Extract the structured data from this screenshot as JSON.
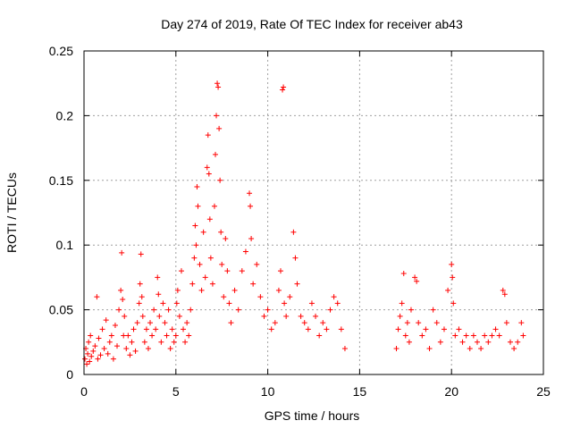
{
  "chart_data": {
    "type": "scatter",
    "title": "Day 274 of 2019, Rate Of TEC Index for receiver ab43",
    "xlabel": "GPS time / hours",
    "ylabel": "ROTI / TECUs",
    "xlim": [
      0,
      25
    ],
    "ylim": [
      0,
      0.25
    ],
    "x_ticks": [
      0,
      5,
      10,
      15,
      20,
      25
    ],
    "x_tick_labels": [
      "0",
      "5",
      "10",
      "15",
      "20",
      "25"
    ],
    "y_ticks": [
      0,
      0.05,
      0.1,
      0.15,
      0.2,
      0.25
    ],
    "y_tick_labels": [
      "0",
      "0.05",
      "0.1",
      "0.15",
      "0.2",
      "0.25"
    ],
    "grid": true,
    "marker": "+",
    "color": "#ff0000",
    "series": [
      {
        "name": "ROTI",
        "points": [
          [
            0.05,
            0.012
          ],
          [
            0.1,
            0.02
          ],
          [
            0.15,
            0.008
          ],
          [
            0.2,
            0.016
          ],
          [
            0.25,
            0.025
          ],
          [
            0.3,
            0.01
          ],
          [
            0.35,
            0.03
          ],
          [
            0.4,
            0.014
          ],
          [
            0.5,
            0.018
          ],
          [
            0.6,
            0.022
          ],
          [
            0.7,
            0.06
          ],
          [
            0.75,
            0.012
          ],
          [
            0.8,
            0.028
          ],
          [
            0.9,
            0.015
          ],
          [
            1.0,
            0.035
          ],
          [
            1.1,
            0.02
          ],
          [
            1.2,
            0.042
          ],
          [
            1.3,
            0.016
          ],
          [
            1.4,
            0.025
          ],
          [
            1.5,
            0.03
          ],
          [
            1.6,
            0.012
          ],
          [
            1.7,
            0.038
          ],
          [
            1.8,
            0.022
          ],
          [
            1.9,
            0.05
          ],
          [
            2.0,
            0.065
          ],
          [
            2.05,
            0.094
          ],
          [
            2.1,
            0.058
          ],
          [
            2.15,
            0.03
          ],
          [
            2.2,
            0.045
          ],
          [
            2.3,
            0.02
          ],
          [
            2.4,
            0.03
          ],
          [
            2.5,
            0.015
          ],
          [
            2.6,
            0.025
          ],
          [
            2.7,
            0.035
          ],
          [
            2.8,
            0.018
          ],
          [
            2.9,
            0.04
          ],
          [
            3.0,
            0.055
          ],
          [
            3.05,
            0.07
          ],
          [
            3.1,
            0.093
          ],
          [
            3.15,
            0.06
          ],
          [
            3.2,
            0.045
          ],
          [
            3.3,
            0.025
          ],
          [
            3.4,
            0.035
          ],
          [
            3.5,
            0.02
          ],
          [
            3.6,
            0.04
          ],
          [
            3.7,
            0.03
          ],
          [
            3.8,
            0.05
          ],
          [
            3.9,
            0.035
          ],
          [
            4.0,
            0.075
          ],
          [
            4.05,
            0.062
          ],
          [
            4.1,
            0.045
          ],
          [
            4.2,
            0.025
          ],
          [
            4.3,
            0.055
          ],
          [
            4.4,
            0.04
          ],
          [
            4.5,
            0.03
          ],
          [
            4.6,
            0.05
          ],
          [
            4.7,
            0.02
          ],
          [
            4.8,
            0.035
          ],
          [
            4.9,
            0.025
          ],
          [
            5.0,
            0.03
          ],
          [
            5.05,
            0.055
          ],
          [
            5.1,
            0.065
          ],
          [
            5.2,
            0.045
          ],
          [
            5.3,
            0.08
          ],
          [
            5.4,
            0.035
          ],
          [
            5.5,
            0.025
          ],
          [
            5.6,
            0.04
          ],
          [
            5.7,
            0.03
          ],
          [
            5.8,
            0.05
          ],
          [
            5.9,
            0.07
          ],
          [
            6.0,
            0.09
          ],
          [
            6.05,
            0.115
          ],
          [
            6.1,
            0.1
          ],
          [
            6.15,
            0.145
          ],
          [
            6.2,
            0.13
          ],
          [
            6.3,
            0.085
          ],
          [
            6.4,
            0.065
          ],
          [
            6.5,
            0.11
          ],
          [
            6.6,
            0.075
          ],
          [
            6.7,
            0.16
          ],
          [
            6.75,
            0.185
          ],
          [
            6.8,
            0.155
          ],
          [
            6.85,
            0.12
          ],
          [
            6.9,
            0.09
          ],
          [
            7.0,
            0.07
          ],
          [
            7.1,
            0.13
          ],
          [
            7.15,
            0.17
          ],
          [
            7.2,
            0.2
          ],
          [
            7.25,
            0.225
          ],
          [
            7.3,
            0.222
          ],
          [
            7.35,
            0.19
          ],
          [
            7.4,
            0.15
          ],
          [
            7.45,
            0.11
          ],
          [
            7.5,
            0.085
          ],
          [
            7.6,
            0.06
          ],
          [
            7.7,
            0.105
          ],
          [
            7.8,
            0.08
          ],
          [
            7.9,
            0.055
          ],
          [
            8.0,
            0.04
          ],
          [
            8.2,
            0.065
          ],
          [
            8.4,
            0.05
          ],
          [
            8.6,
            0.08
          ],
          [
            8.8,
            0.095
          ],
          [
            9.0,
            0.14
          ],
          [
            9.05,
            0.13
          ],
          [
            9.1,
            0.105
          ],
          [
            9.2,
            0.07
          ],
          [
            9.4,
            0.085
          ],
          [
            9.6,
            0.06
          ],
          [
            9.8,
            0.045
          ],
          [
            10.0,
            0.05
          ],
          [
            10.2,
            0.035
          ],
          [
            10.4,
            0.04
          ],
          [
            10.6,
            0.065
          ],
          [
            10.7,
            0.08
          ],
          [
            10.8,
            0.22
          ],
          [
            10.85,
            0.222
          ],
          [
            10.9,
            0.055
          ],
          [
            11.0,
            0.045
          ],
          [
            11.2,
            0.06
          ],
          [
            11.4,
            0.11
          ],
          [
            11.5,
            0.09
          ],
          [
            11.6,
            0.07
          ],
          [
            11.8,
            0.045
          ],
          [
            12.0,
            0.04
          ],
          [
            12.2,
            0.035
          ],
          [
            12.4,
            0.055
          ],
          [
            12.6,
            0.045
          ],
          [
            12.8,
            0.03
          ],
          [
            13.0,
            0.04
          ],
          [
            13.2,
            0.035
          ],
          [
            13.4,
            0.05
          ],
          [
            13.6,
            0.06
          ],
          [
            13.8,
            0.055
          ],
          [
            14.0,
            0.035
          ],
          [
            14.2,
            0.02
          ],
          [
            17.0,
            0.02
          ],
          [
            17.1,
            0.035
          ],
          [
            17.2,
            0.045
          ],
          [
            17.3,
            0.055
          ],
          [
            17.4,
            0.078
          ],
          [
            17.5,
            0.03
          ],
          [
            17.6,
            0.04
          ],
          [
            17.7,
            0.025
          ],
          [
            17.8,
            0.05
          ],
          [
            18.0,
            0.075
          ],
          [
            18.1,
            0.072
          ],
          [
            18.2,
            0.04
          ],
          [
            18.4,
            0.03
          ],
          [
            18.6,
            0.035
          ],
          [
            18.8,
            0.02
          ],
          [
            19.0,
            0.05
          ],
          [
            19.2,
            0.04
          ],
          [
            19.4,
            0.025
          ],
          [
            19.6,
            0.035
          ],
          [
            19.8,
            0.065
          ],
          [
            20.0,
            0.085
          ],
          [
            20.05,
            0.075
          ],
          [
            20.1,
            0.055
          ],
          [
            20.2,
            0.03
          ],
          [
            20.4,
            0.035
          ],
          [
            20.6,
            0.025
          ],
          [
            20.8,
            0.03
          ],
          [
            21.0,
            0.02
          ],
          [
            21.2,
            0.03
          ],
          [
            21.4,
            0.025
          ],
          [
            21.6,
            0.02
          ],
          [
            21.8,
            0.03
          ],
          [
            22.0,
            0.025
          ],
          [
            22.2,
            0.03
          ],
          [
            22.4,
            0.035
          ],
          [
            22.6,
            0.03
          ],
          [
            22.8,
            0.065
          ],
          [
            22.9,
            0.062
          ],
          [
            23.0,
            0.04
          ],
          [
            23.2,
            0.025
          ],
          [
            23.4,
            0.02
          ],
          [
            23.6,
            0.025
          ],
          [
            23.8,
            0.04
          ],
          [
            23.9,
            0.03
          ]
        ]
      }
    ]
  }
}
